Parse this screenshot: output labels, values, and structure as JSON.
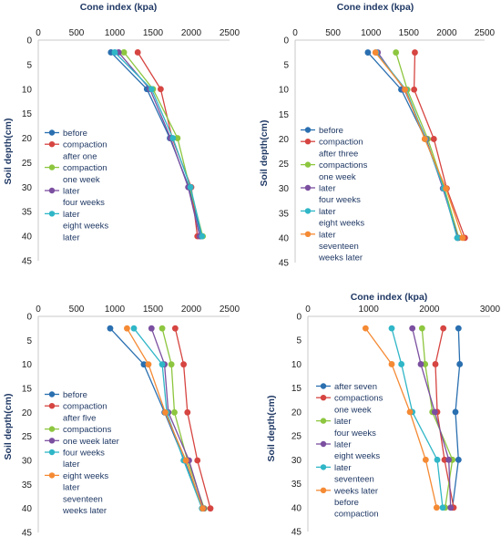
{
  "chart_data": [
    {
      "type": "line",
      "title": "",
      "xlabel": "Cone index (kpa)",
      "ylabel": "Soil depth(cm)",
      "xlim": [
        0,
        2500
      ],
      "ylim": [
        0,
        45
      ],
      "y_inverted": true,
      "x_axis_position": "top",
      "xticks": [
        "0",
        "500",
        "1000",
        "1500",
        "2000",
        "2500"
      ],
      "yticks": [
        "0",
        "5",
        "10",
        "15",
        "20",
        "25",
        "30",
        "35",
        "40",
        "45"
      ],
      "depths": [
        2.5,
        10,
        20,
        30,
        40
      ],
      "legend_position": "left",
      "series": [
        {
          "name": "before compaction",
          "color": "#2a6fb0",
          "values": [
            950,
            1420,
            1720,
            1970,
            2130
          ]
        },
        {
          "name": "after one compaction",
          "color": "#d64541",
          "values": [
            1300,
            1600,
            1750,
            2000,
            2080
          ]
        },
        {
          "name": "one week later",
          "color": "#8dc63f",
          "values": [
            1120,
            1500,
            1820,
            1980,
            2150
          ]
        },
        {
          "name": "four weeks later",
          "color": "#7b4fa0",
          "values": [
            1050,
            1460,
            1730,
            1960,
            2110
          ]
        },
        {
          "name": "eight weeks later",
          "color": "#2fb6c7",
          "values": [
            1000,
            1480,
            1760,
            1990,
            2140
          ]
        }
      ]
    },
    {
      "type": "line",
      "title": "",
      "xlabel": "Cone index (kpa)",
      "ylabel": "Soil depth(cm)",
      "xlim": [
        0,
        2500
      ],
      "ylim": [
        0,
        45
      ],
      "y_inverted": true,
      "x_axis_position": "top",
      "xticks": [
        "0",
        "500",
        "1000",
        "1500",
        "2000",
        "2500"
      ],
      "yticks": [
        "0",
        "5",
        "10",
        "15",
        "20",
        "25",
        "30",
        "35",
        "40",
        "45"
      ],
      "depths": [
        2.5,
        10,
        20,
        30,
        40
      ],
      "legend_position": "left",
      "series": [
        {
          "name": "before compaction",
          "color": "#2a6fb0",
          "values": [
            960,
            1400,
            1720,
            1960,
            2140
          ]
        },
        {
          "name": "after three compactions",
          "color": "#d64541",
          "values": [
            1580,
            1570,
            1830,
            2000,
            2240
          ]
        },
        {
          "name": "one week later",
          "color": "#8dc63f",
          "values": [
            1330,
            1480,
            1750,
            1970,
            2160
          ]
        },
        {
          "name": "four weeks later",
          "color": "#7b4fa0",
          "values": [
            1090,
            1440,
            1730,
            1950,
            2150
          ]
        },
        {
          "name": "eight weeks later",
          "color": "#2fb6c7",
          "values": [
            1070,
            1460,
            1720,
            1960,
            2140
          ]
        },
        {
          "name": "seventeen weeks later",
          "color": "#f58a34",
          "values": [
            1060,
            1450,
            1710,
            1990,
            2210
          ]
        }
      ]
    },
    {
      "type": "line",
      "title": "",
      "xlabel": "",
      "ylabel": "Soil depth(cm)",
      "xlim": [
        0,
        2500
      ],
      "ylim": [
        0,
        45
      ],
      "y_inverted": true,
      "x_axis_position": "top",
      "xticks": [
        "0",
        "500",
        "1000",
        "1500",
        "2000",
        "2500"
      ],
      "yticks": [
        "0",
        "5",
        "10",
        "15",
        "20",
        "25",
        "30",
        "35",
        "40",
        "45"
      ],
      "depths": [
        2.5,
        10,
        20,
        30,
        40
      ],
      "legend_position": "left",
      "series": [
        {
          "name": "before compaction",
          "color": "#2a6fb0",
          "values": [
            940,
            1380,
            1650,
            1910,
            2140
          ]
        },
        {
          "name": "after five compactions",
          "color": "#d64541",
          "values": [
            1790,
            1900,
            1950,
            2080,
            2250
          ]
        },
        {
          "name": "one week later",
          "color": "#8dc63f",
          "values": [
            1620,
            1740,
            1780,
            1950,
            2170
          ]
        },
        {
          "name": "four weeks later",
          "color": "#7b4fa0",
          "values": [
            1480,
            1650,
            1700,
            1970,
            2160
          ]
        },
        {
          "name": "eight weeks later",
          "color": "#2fb6c7",
          "values": [
            1250,
            1620,
            1680,
            1900,
            2140
          ]
        },
        {
          "name": "seventeen weeks later",
          "color": "#f58a34",
          "values": [
            1160,
            1440,
            1660,
            1930,
            2150
          ]
        }
      ]
    },
    {
      "type": "line",
      "title": "",
      "xlabel": "Cone index (kpa)",
      "ylabel": "Soil depth(cm)",
      "xlim": [
        0,
        3000
      ],
      "ylim": [
        0,
        45
      ],
      "y_inverted": true,
      "x_axis_position": "top",
      "xticks": [
        "0",
        "1000",
        "2000",
        "3000"
      ],
      "yticks": [
        "0",
        "5",
        "10",
        "15",
        "20",
        "25",
        "30",
        "35",
        "40",
        "45"
      ],
      "depths": [
        2.5,
        10,
        20,
        30,
        40
      ],
      "legend_position": "left",
      "series": [
        {
          "name": "after seven compactions",
          "color": "#2a6fb0",
          "values": [
            2480,
            2500,
            2430,
            2480,
            2380
          ]
        },
        {
          "name": "one week later",
          "color": "#d64541",
          "values": [
            2230,
            2100,
            2130,
            2250,
            2400
          ]
        },
        {
          "name": "four weeks later",
          "color": "#8dc63f",
          "values": [
            1880,
            1930,
            2050,
            2380,
            2260
          ]
        },
        {
          "name": "eight weeks later",
          "color": "#7b4fa0",
          "values": [
            1720,
            1860,
            2090,
            2320,
            2350
          ]
        },
        {
          "name": "seventeen weeks later",
          "color": "#2fb6c7",
          "values": [
            1380,
            1540,
            1720,
            2130,
            2220
          ]
        },
        {
          "name": "before compaction",
          "color": "#f58a34",
          "values": [
            950,
            1380,
            1680,
            1940,
            2120
          ]
        }
      ]
    }
  ],
  "legends": [
    [
      "before",
      "compaction",
      "after one",
      "compaction",
      "one week",
      "later",
      "four weeks",
      "later",
      "eight weeks",
      "later"
    ],
    [
      "before",
      "compaction",
      "after three",
      "compactions",
      "one week",
      "later",
      "four weeks",
      "later",
      "eight weeks",
      "later",
      "seventeen",
      "weeks later"
    ],
    [
      "before",
      "compaction",
      "after five",
      "compactions",
      "one week later",
      "four weeks",
      "later",
      "eight weeks",
      "later",
      "seventeen",
      "weeks later"
    ],
    [
      "after seven",
      "compactions",
      "one week",
      "later",
      "four weeks",
      "later",
      "eight weeks",
      "later",
      "seventeen",
      "weeks later",
      "before",
      "compaction"
    ]
  ]
}
